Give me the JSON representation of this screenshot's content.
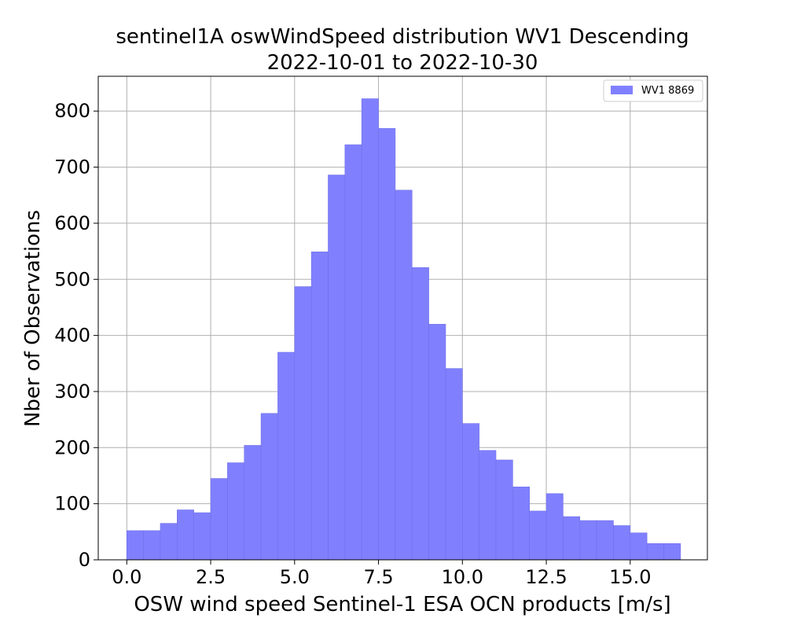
{
  "chart_data": {
    "type": "bar",
    "title": "sentinel1A oswWindSpeed distribution WV1 Descending",
    "subtitle": "2022-10-01 to 2022-10-30",
    "xlabel": "OSW wind speed Sentinel-1 ESA OCN products [m/s]",
    "ylabel": "Nber of Observations",
    "xlim": [
      -0.85,
      17.3
    ],
    "ylim": [
      0,
      862
    ],
    "xticks": [
      0.0,
      2.5,
      5.0,
      7.5,
      10.0,
      12.5,
      15.0
    ],
    "xtick_labels": [
      "0.0",
      "2.5",
      "5.0",
      "7.5",
      "10.0",
      "12.5",
      "15.0"
    ],
    "yticks": [
      0,
      100,
      200,
      300,
      400,
      500,
      600,
      700,
      800
    ],
    "ytick_labels": [
      "0",
      "100",
      "200",
      "300",
      "400",
      "500",
      "600",
      "700",
      "800"
    ],
    "grid": true,
    "legend_position": "top-right",
    "bin_width": 0.5,
    "series": [
      {
        "name": "WV1 8869",
        "color": "#8080ff",
        "edge_color": "#7070e6",
        "bin_starts": [
          0.0,
          0.5,
          1.0,
          1.5,
          2.0,
          2.5,
          3.0,
          3.5,
          4.0,
          4.5,
          5.0,
          5.5,
          6.0,
          6.5,
          7.0,
          7.5,
          8.0,
          8.5,
          9.0,
          9.5,
          10.0,
          10.5,
          11.0,
          11.5,
          12.0,
          12.5,
          13.0,
          13.5,
          14.0,
          14.5,
          15.0,
          15.5,
          16.0
        ],
        "values": [
          52,
          52,
          65,
          89,
          84,
          145,
          173,
          204,
          261,
          370,
          487,
          549,
          686,
          740,
          822,
          769,
          659,
          521,
          420,
          341,
          243,
          195,
          178,
          130,
          87,
          118,
          77,
          70,
          70,
          61,
          48,
          29,
          29
        ]
      }
    ]
  }
}
